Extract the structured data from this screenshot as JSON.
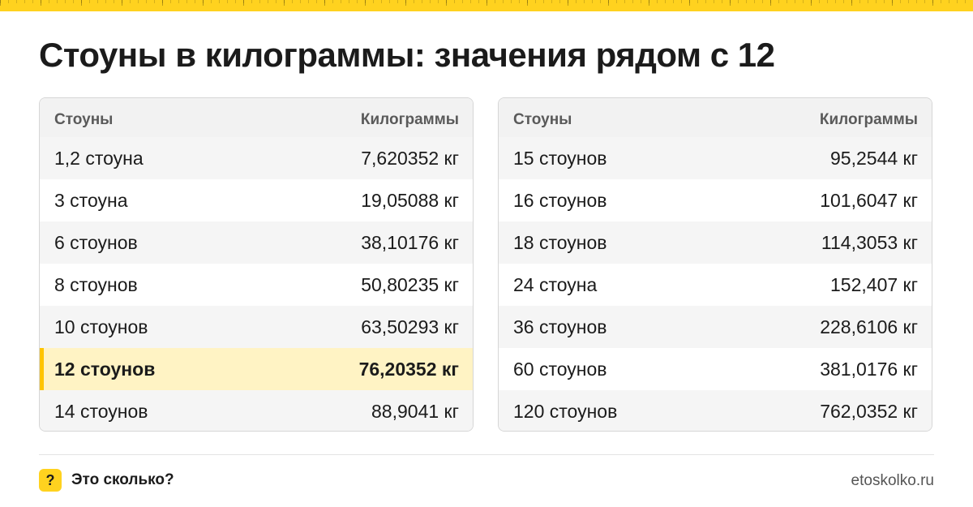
{
  "title": "Стоуны в килограммы: значения рядом с 12",
  "colors": {
    "accent": "#ffd21f",
    "highlight_bg": "#fff3c4",
    "highlight_bar": "#ffc400"
  },
  "tables": [
    {
      "header": {
        "col1": "Стоуны",
        "col2": "Килограммы"
      },
      "rows": [
        {
          "stones": "1,2 стоуна",
          "kg": "7,620352 кг"
        },
        {
          "stones": "3 стоуна",
          "kg": "19,05088 кг"
        },
        {
          "stones": "6 стоунов",
          "kg": "38,10176 кг"
        },
        {
          "stones": "8 стоунов",
          "kg": "50,80235 кг"
        },
        {
          "stones": "10 стоунов",
          "kg": "63,50293 кг"
        },
        {
          "stones": "12 стоунов",
          "kg": "76,20352 кг",
          "highlighted": true
        },
        {
          "stones": "14 стоунов",
          "kg": "88,9041 кг"
        }
      ]
    },
    {
      "header": {
        "col1": "Стоуны",
        "col2": "Килограммы"
      },
      "rows": [
        {
          "stones": "15 стоунов",
          "kg": "95,2544 кг"
        },
        {
          "stones": "16 стоунов",
          "kg": "101,6047 кг"
        },
        {
          "stones": "18 стоунов",
          "kg": "114,3053 кг"
        },
        {
          "stones": "24 стоуна",
          "kg": "152,407 кг"
        },
        {
          "stones": "36 стоунов",
          "kg": "228,6106 кг"
        },
        {
          "stones": "60 стоунов",
          "kg": "381,0176 кг"
        },
        {
          "stones": "120 стоунов",
          "kg": "762,0352 кг"
        }
      ]
    }
  ],
  "footer": {
    "logo_icon": "question-mark-icon",
    "logo_glyph": "?",
    "brand": "Это сколько?",
    "site": "etoskolko.ru"
  }
}
